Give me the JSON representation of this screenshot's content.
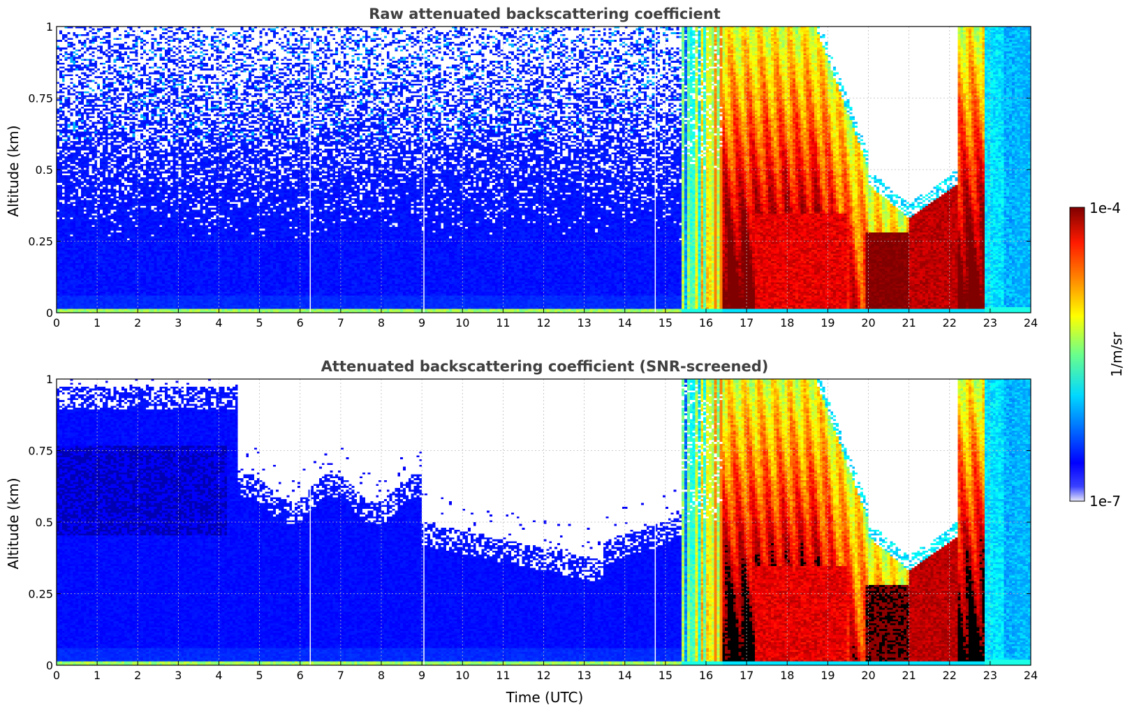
{
  "chart_data": [
    {
      "type": "heatmap",
      "title": "Raw attenuated backscattering coefficient",
      "xlabel": "",
      "ylabel": "Altitude (km)",
      "xlim": [
        0,
        24
      ],
      "ylim": [
        0,
        1
      ],
      "xticks": [
        "0",
        "1",
        "2",
        "3",
        "4",
        "5",
        "6",
        "7",
        "8",
        "9",
        "10",
        "11",
        "12",
        "13",
        "14",
        "15",
        "16",
        "17",
        "18",
        "19",
        "20",
        "21",
        "22",
        "23",
        "24"
      ],
      "yticks": [
        "0",
        "0.25",
        "0.5",
        "0.75",
        "1"
      ],
      "grid": true,
      "screened": false,
      "colorbar": {
        "label": "1/m/sr",
        "min": "1e-7",
        "max": "1e-4",
        "scale": "log",
        "colormap": "jet"
      }
    },
    {
      "type": "heatmap",
      "title": "Attenuated backscattering coefficient (SNR-screened)",
      "xlabel": "Time (UTC)",
      "ylabel": "Altitude (km)",
      "xlim": [
        0,
        24
      ],
      "ylim": [
        0,
        1
      ],
      "xticks": [
        "0",
        "1",
        "2",
        "3",
        "4",
        "5",
        "6",
        "7",
        "8",
        "9",
        "10",
        "11",
        "12",
        "13",
        "14",
        "15",
        "16",
        "17",
        "18",
        "19",
        "20",
        "21",
        "22",
        "23",
        "24"
      ],
      "yticks": [
        "0",
        "0.25",
        "0.5",
        "0.75",
        "1"
      ],
      "grid": true,
      "screened": true,
      "colorbar": {
        "label": "1/m/sr",
        "min": "1e-7",
        "max": "1e-4",
        "scale": "log",
        "colormap": "jet"
      }
    }
  ],
  "colorbar": {
    "label": "1/m/sr",
    "max_label": "1e-4",
    "min_label": "1e-7"
  },
  "colors": {
    "grid": "#bbbbbb",
    "title": "#404040",
    "background": "#ffffff"
  }
}
